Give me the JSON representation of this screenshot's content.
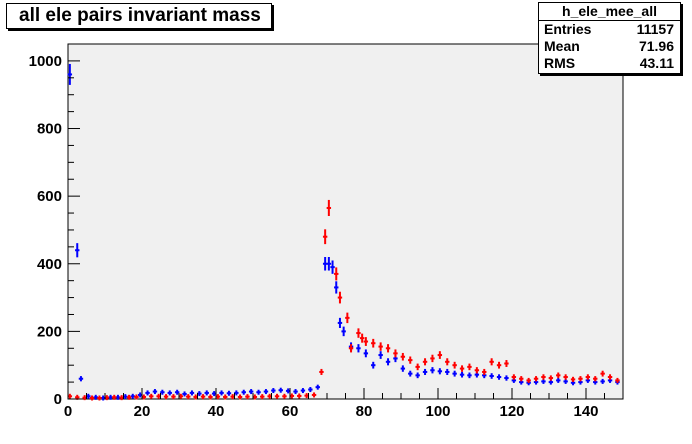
{
  "chart_data": {
    "type": "scatter",
    "title": "all ele pairs invariant mass",
    "xlabel": "",
    "ylabel": "",
    "xlim": [
      0,
      150
    ],
    "ylim": [
      0,
      1050
    ],
    "x_ticks": [
      0,
      20,
      40,
      60,
      80,
      100,
      120,
      140
    ],
    "y_ticks": [
      0,
      200,
      400,
      600,
      800,
      1000
    ],
    "grid": false,
    "plot_background": "#f0f0f0",
    "stats": {
      "name": "h_ele_mee_all",
      "rows": [
        {
          "label": "Entries",
          "value": "11157"
        },
        {
          "label": "Mean",
          "value": "71.96"
        },
        {
          "label": "RMS",
          "value": "43.11"
        }
      ]
    },
    "series": [
      {
        "color": "#0000ff",
        "points": [
          [
            0.5,
            960
          ],
          [
            2.5,
            440
          ],
          [
            3.5,
            60
          ],
          [
            5.5,
            8
          ],
          [
            7.5,
            5
          ],
          [
            9.5,
            3
          ],
          [
            11.5,
            5
          ],
          [
            13.5,
            5
          ],
          [
            15.5,
            7
          ],
          [
            17.5,
            8
          ],
          [
            19.5,
            12
          ],
          [
            21.5,
            18
          ],
          [
            23.5,
            22
          ],
          [
            25.5,
            20
          ],
          [
            27.5,
            18
          ],
          [
            29.5,
            20
          ],
          [
            31.5,
            15
          ],
          [
            33.5,
            18
          ],
          [
            35.5,
            16
          ],
          [
            37.5,
            18
          ],
          [
            39.5,
            16
          ],
          [
            41.5,
            18
          ],
          [
            43.5,
            17
          ],
          [
            45.5,
            18
          ],
          [
            47.5,
            20
          ],
          [
            49.5,
            22
          ],
          [
            51.5,
            20
          ],
          [
            53.5,
            22
          ],
          [
            55.5,
            25
          ],
          [
            57.5,
            26
          ],
          [
            59.5,
            24
          ],
          [
            61.5,
            22
          ],
          [
            63.5,
            25
          ],
          [
            65.5,
            28
          ],
          [
            67.5,
            35
          ],
          [
            69.5,
            400
          ],
          [
            70.5,
            400
          ],
          [
            71.5,
            390
          ],
          [
            72.5,
            330
          ],
          [
            73.5,
            225
          ],
          [
            74.5,
            200
          ],
          [
            76.5,
            155
          ],
          [
            78.5,
            150
          ],
          [
            80.5,
            135
          ],
          [
            82.5,
            100
          ],
          [
            84.5,
            130
          ],
          [
            86.5,
            110
          ],
          [
            88.5,
            120
          ],
          [
            90.5,
            90
          ],
          [
            92.5,
            75
          ],
          [
            94.5,
            70
          ],
          [
            96.5,
            80
          ],
          [
            98.5,
            85
          ],
          [
            100.5,
            82
          ],
          [
            102.5,
            80
          ],
          [
            104.5,
            75
          ],
          [
            106.5,
            72
          ],
          [
            108.5,
            70
          ],
          [
            110.5,
            72
          ],
          [
            112.5,
            70
          ],
          [
            114.5,
            68
          ],
          [
            116.5,
            65
          ],
          [
            118.5,
            62
          ],
          [
            120.5,
            55
          ],
          [
            122.5,
            50
          ],
          [
            124.5,
            48
          ],
          [
            126.5,
            50
          ],
          [
            128.5,
            52
          ],
          [
            130.5,
            50
          ],
          [
            132.5,
            55
          ],
          [
            134.5,
            52
          ],
          [
            136.5,
            48
          ],
          [
            138.5,
            50
          ],
          [
            140.5,
            55
          ],
          [
            142.5,
            50
          ],
          [
            144.5,
            52
          ],
          [
            146.5,
            55
          ],
          [
            148.5,
            50
          ]
        ]
      },
      {
        "color": "#ff0000",
        "points": [
          [
            0.5,
            8
          ],
          [
            2.5,
            5
          ],
          [
            4.5,
            4
          ],
          [
            6.5,
            3
          ],
          [
            8.5,
            3
          ],
          [
            10.5,
            4
          ],
          [
            12.5,
            5
          ],
          [
            14.5,
            4
          ],
          [
            16.5,
            5
          ],
          [
            18.5,
            6
          ],
          [
            20.5,
            6
          ],
          [
            22.5,
            8
          ],
          [
            24.5,
            8
          ],
          [
            26.5,
            7
          ],
          [
            28.5,
            7
          ],
          [
            30.5,
            8
          ],
          [
            32.5,
            7
          ],
          [
            34.5,
            6
          ],
          [
            36.5,
            7
          ],
          [
            38.5,
            6
          ],
          [
            40.5,
            7
          ],
          [
            42.5,
            6
          ],
          [
            44.5,
            7
          ],
          [
            46.5,
            6
          ],
          [
            48.5,
            7
          ],
          [
            50.5,
            6
          ],
          [
            52.5,
            7
          ],
          [
            54.5,
            8
          ],
          [
            56.5,
            8
          ],
          [
            58.5,
            8
          ],
          [
            60.5,
            9
          ],
          [
            62.5,
            9
          ],
          [
            64.5,
            10
          ],
          [
            66.5,
            12
          ],
          [
            68.5,
            80
          ],
          [
            69.5,
            480
          ],
          [
            70.5,
            565
          ],
          [
            72.5,
            370
          ],
          [
            73.5,
            300
          ],
          [
            75.5,
            240
          ],
          [
            76.5,
            150
          ],
          [
            78.5,
            195
          ],
          [
            79.5,
            180
          ],
          [
            80.5,
            170
          ],
          [
            82.5,
            165
          ],
          [
            84.5,
            155
          ],
          [
            86.5,
            150
          ],
          [
            88.5,
            135
          ],
          [
            90.5,
            125
          ],
          [
            92.5,
            115
          ],
          [
            94.5,
            95
          ],
          [
            96.5,
            110
          ],
          [
            98.5,
            120
          ],
          [
            100.5,
            130
          ],
          [
            102.5,
            110
          ],
          [
            104.5,
            100
          ],
          [
            106.5,
            90
          ],
          [
            108.5,
            95
          ],
          [
            110.5,
            85
          ],
          [
            112.5,
            80
          ],
          [
            114.5,
            110
          ],
          [
            116.5,
            100
          ],
          [
            118.5,
            105
          ],
          [
            120.5,
            65
          ],
          [
            122.5,
            60
          ],
          [
            124.5,
            55
          ],
          [
            126.5,
            60
          ],
          [
            128.5,
            65
          ],
          [
            130.5,
            62
          ],
          [
            132.5,
            70
          ],
          [
            134.5,
            65
          ],
          [
            136.5,
            58
          ],
          [
            138.5,
            60
          ],
          [
            140.5,
            65
          ],
          [
            142.5,
            60
          ],
          [
            144.5,
            75
          ],
          [
            146.5,
            65
          ],
          [
            148.5,
            55
          ]
        ]
      }
    ]
  }
}
